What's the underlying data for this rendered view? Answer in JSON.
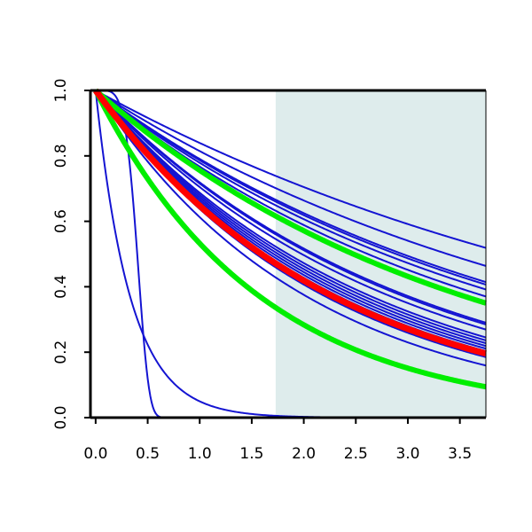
{
  "chart_data": {
    "type": "line",
    "title": "",
    "xlabel": "",
    "ylabel": "",
    "xlim": [
      -0.05,
      3.75
    ],
    "ylim": [
      0,
      1
    ],
    "grid": false,
    "x_ticks": [
      "0.0",
      "0.5",
      "1.0",
      "1.5",
      "2.0",
      "2.5",
      "3.0",
      "3.5"
    ],
    "y_ticks": [
      "0.0",
      "0.2",
      "0.4",
      "0.6",
      "0.8",
      "1.0"
    ],
    "shaded_region": {
      "x_start": 1.73,
      "x_end": 3.75,
      "color": "#deecec"
    },
    "colors": {
      "blue": "#1414d2",
      "green": "#00ee00",
      "red": "#ff0000",
      "axis": "#000000"
    },
    "series": [
      {
        "kind": "exp",
        "rate": 3.0,
        "color": "blue",
        "width": 2
      },
      {
        "kind": "weibull",
        "scale": 0.43,
        "shape": 5.0,
        "color": "blue",
        "width": 2
      },
      {
        "kind": "exp",
        "rate": 0.175,
        "color": "blue",
        "width": 2
      },
      {
        "kind": "exp",
        "rate": 0.205,
        "color": "blue",
        "width": 2
      },
      {
        "kind": "exp",
        "rate": 0.235,
        "color": "blue",
        "width": 2
      },
      {
        "kind": "exp",
        "rate": 0.24,
        "color": "blue",
        "width": 2
      },
      {
        "kind": "exp",
        "rate": 0.25,
        "color": "blue",
        "width": 2
      },
      {
        "kind": "exp",
        "rate": 0.265,
        "color": "blue",
        "width": 2
      },
      {
        "kind": "exp",
        "rate": 0.33,
        "color": "blue",
        "width": 2
      },
      {
        "kind": "exp",
        "rate": 0.335,
        "color": "blue",
        "width": 2
      },
      {
        "kind": "exp",
        "rate": 0.35,
        "color": "blue",
        "width": 2
      },
      {
        "kind": "exp",
        "rate": 0.375,
        "color": "blue",
        "width": 2
      },
      {
        "kind": "exp",
        "rate": 0.385,
        "color": "blue",
        "width": 2
      },
      {
        "kind": "exp",
        "rate": 0.395,
        "color": "blue",
        "width": 2
      },
      {
        "kind": "exp",
        "rate": 0.405,
        "color": "blue",
        "width": 2
      },
      {
        "kind": "exp",
        "rate": 0.415,
        "color": "blue",
        "width": 2
      },
      {
        "kind": "exp",
        "rate": 0.425,
        "color": "blue",
        "width": 2
      },
      {
        "kind": "exp",
        "rate": 0.435,
        "color": "blue",
        "width": 2
      },
      {
        "kind": "exp",
        "rate": 0.45,
        "color": "blue",
        "width": 2
      },
      {
        "kind": "exp",
        "rate": 0.49,
        "color": "blue",
        "width": 2
      },
      {
        "kind": "exp",
        "rate": 0.28,
        "color": "green",
        "width": 6
      },
      {
        "kind": "exp",
        "rate": 0.63,
        "color": "green",
        "width": 6
      },
      {
        "kind": "exp",
        "rate": 0.435,
        "color": "red",
        "width": 7
      }
    ]
  }
}
